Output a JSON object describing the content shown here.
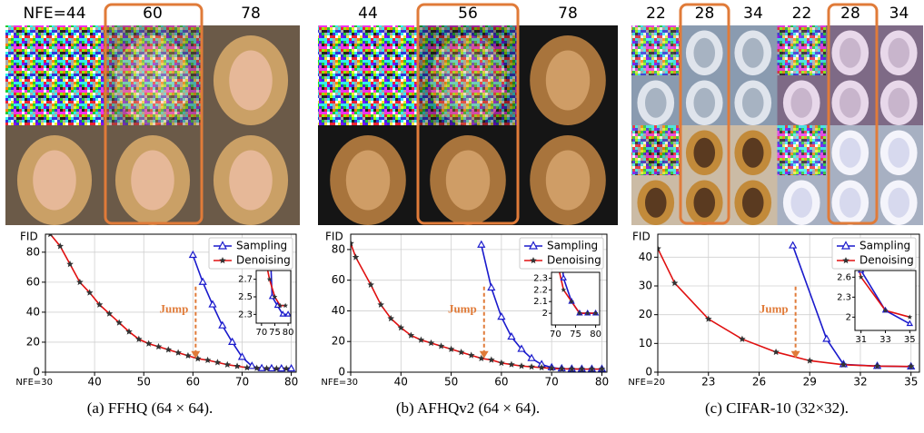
{
  "image_grids": [
    {
      "column_labels": [
        "NFE=44",
        "60",
        "78"
      ]
    },
    {
      "column_labels": [
        "44",
        "56",
        "78"
      ]
    },
    {
      "column_labels": [
        "22",
        "28",
        "34",
        "22",
        "28",
        "34"
      ]
    }
  ],
  "captions": [
    "(a) FFHQ (64 × 64).",
    "(b) AFHQv2 (64 × 64).",
    "(c) CIFAR-10 (32×32)."
  ],
  "chart_data": [
    {
      "type": "line",
      "y_label": "FID",
      "annotation": "Jump",
      "grid": true,
      "legend": "upper right",
      "xlim": [
        30,
        81
      ],
      "ylim": [
        0,
        92
      ],
      "xticks": [
        {
          "value": 30,
          "label": "NFE=30"
        },
        40,
        50,
        60,
        70,
        80
      ],
      "yticks": [
        0,
        20,
        40,
        60,
        80
      ],
      "series": [
        {
          "name": "Sampling",
          "color": "#1a1acc",
          "marker": "triangle",
          "x": [
            60,
            62,
            64,
            66,
            68,
            70,
            72,
            74,
            76,
            78,
            80
          ],
          "values": [
            78,
            60,
            45,
            31,
            20,
            10,
            4,
            2.5,
            2.4,
            2.3,
            2.3
          ]
        },
        {
          "name": "Denoising",
          "color": "#e01010",
          "marker": "star",
          "x": [
            31,
            33,
            35,
            37,
            39,
            41,
            43,
            45,
            47,
            49,
            51,
            53,
            55,
            57,
            59,
            61,
            63,
            65,
            67,
            69,
            71,
            73,
            75,
            77,
            79
          ],
          "values": [
            92,
            84,
            72,
            60,
            53,
            45,
            39,
            33,
            27,
            22,
            19,
            17,
            15,
            13,
            11,
            9,
            8,
            6.5,
            5,
            4,
            3,
            2.7,
            2.5,
            2.4,
            2.4
          ]
        }
      ],
      "inset": {
        "xlim": [
          68,
          81
        ],
        "ylim": [
          2.2,
          2.8
        ],
        "xticks": [
          70,
          75,
          80
        ],
        "yticks": [
          2.3,
          2.5,
          2.7
        ]
      }
    },
    {
      "type": "line",
      "y_label": "FID",
      "annotation": "Jump",
      "grid": true,
      "legend": "upper right",
      "xlim": [
        30,
        81
      ],
      "ylim": [
        0,
        90
      ],
      "xticks": [
        {
          "value": 30,
          "label": "NFE=30"
        },
        40,
        50,
        60,
        70,
        80
      ],
      "yticks": [
        0,
        20,
        40,
        60,
        80
      ],
      "series": [
        {
          "name": "Sampling",
          "color": "#1a1acc",
          "marker": "triangle",
          "x": [
            56,
            58,
            60,
            62,
            64,
            66,
            68,
            70,
            72,
            74,
            76,
            78,
            80
          ],
          "values": [
            83,
            55,
            36,
            23,
            15,
            9,
            5,
            3,
            2.3,
            2.1,
            2.0,
            2.0,
            2.0
          ]
        },
        {
          "name": "Denoising",
          "color": "#e01010",
          "marker": "star",
          "x": [
            30,
            31,
            34,
            36,
            38,
            40,
            42,
            44,
            46,
            48,
            50,
            52,
            54,
            56,
            58,
            60,
            62,
            64,
            66,
            68,
            70,
            72,
            74,
            76,
            78,
            80
          ],
          "values": [
            84,
            75,
            57,
            44,
            35,
            29,
            24,
            21,
            19,
            17,
            15,
            13,
            11,
            9,
            8,
            6,
            5,
            4,
            3.5,
            3,
            2.5,
            2.2,
            2.1,
            2.0,
            2.0,
            2.0
          ]
        }
      ],
      "inset": {
        "xlim": [
          69,
          81
        ],
        "ylim": [
          1.9,
          2.35
        ],
        "xticks": [
          70,
          75,
          80
        ],
        "yticks": [
          2.0,
          2.1,
          2.2,
          2.3
        ]
      }
    },
    {
      "type": "line",
      "y_label": "FID",
      "annotation": "Jump",
      "grid": true,
      "legend": "upper right",
      "xlim": [
        20,
        35.5
      ],
      "ylim": [
        0,
        48
      ],
      "xticks": [
        {
          "value": 20,
          "label": "NFE=20"
        },
        23,
        26,
        29,
        32,
        35
      ],
      "yticks": [
        0,
        10,
        20,
        30,
        40
      ],
      "series": [
        {
          "name": "Sampling",
          "color": "#1a1acc",
          "marker": "triangle",
          "x": [
            28,
            30,
            31,
            33,
            35
          ],
          "values": [
            44,
            11.5,
            2.7,
            2.1,
            1.9
          ]
        },
        {
          "name": "Denoising",
          "color": "#e01010",
          "marker": "star",
          "x": [
            20,
            21,
            23,
            25,
            27,
            29,
            31,
            33,
            35
          ],
          "values": [
            43,
            31,
            18.5,
            11.5,
            7,
            4,
            2.6,
            2.1,
            2.0
          ]
        }
      ],
      "inset": {
        "xlim": [
          30.5,
          35.5
        ],
        "ylim": [
          1.8,
          2.7
        ],
        "xticks": [
          31,
          33,
          35
        ],
        "yticks": [
          2.0,
          2.3,
          2.6
        ]
      }
    }
  ]
}
